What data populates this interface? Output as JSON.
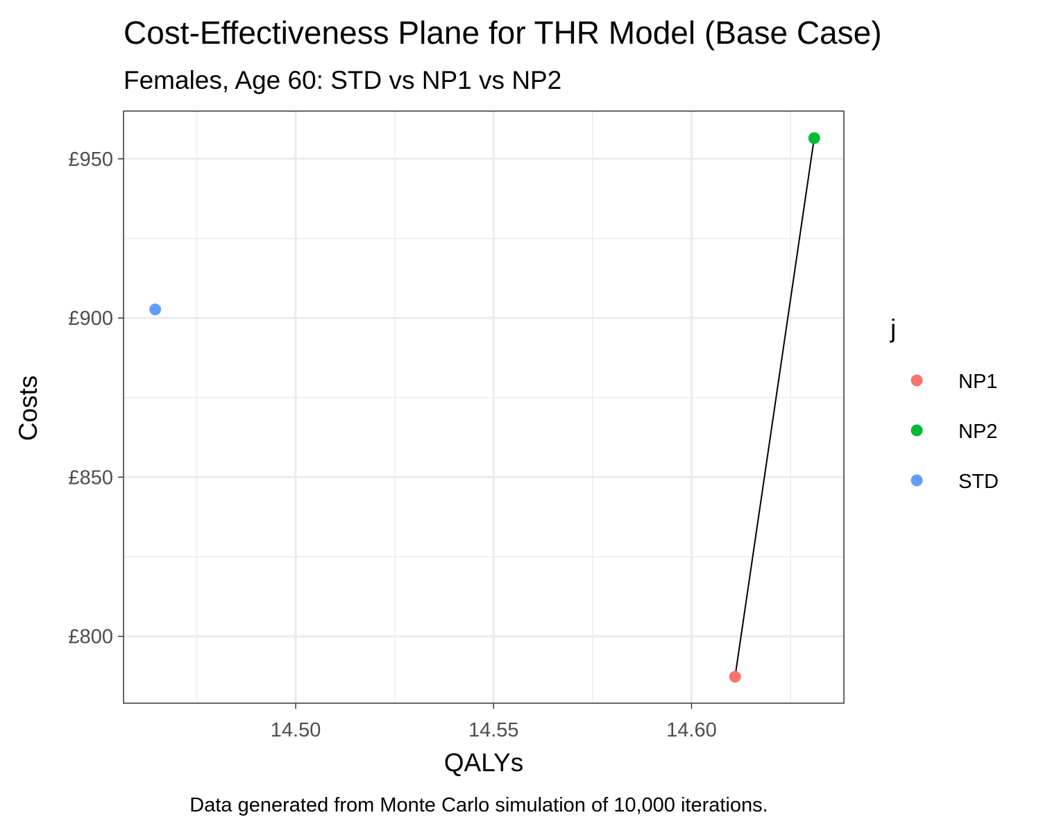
{
  "chart_data": {
    "type": "scatter",
    "title": "Cost-Effectiveness Plane for THR Model (Base Case)",
    "subtitle": "Females, Age 60: STD vs NP1 vs NP2",
    "caption": "Data generated from Monte Carlo simulation of 10,000 iterations.",
    "xlabel": "QALYs",
    "ylabel": "Costs",
    "xlim": [
      14.4565,
      14.6385
    ],
    "ylim": [
      779,
      965
    ],
    "x_ticks": [
      {
        "value": 14.5,
        "label": "14.50"
      },
      {
        "value": 14.55,
        "label": "14.55"
      },
      {
        "value": 14.6,
        "label": "14.60"
      }
    ],
    "x_minor_ticks": [
      14.475,
      14.525,
      14.575,
      14.625
    ],
    "y_ticks": [
      {
        "value": 800,
        "label": "£800"
      },
      {
        "value": 850,
        "label": "£850"
      },
      {
        "value": 900,
        "label": "£900"
      },
      {
        "value": 950,
        "label": "£950"
      }
    ],
    "y_minor_ticks": [
      825,
      875,
      925
    ],
    "grid": true,
    "legend": {
      "title": "j",
      "placement": "right",
      "entries": [
        {
          "name": "NP1",
          "color": "#F8766D"
        },
        {
          "name": "NP2",
          "color": "#00BA38"
        },
        {
          "name": "STD",
          "color": "#619CFF"
        }
      ]
    },
    "points": [
      {
        "name": "STD",
        "x": 14.4645,
        "y": 902.7,
        "color": "#619CFF"
      },
      {
        "name": "NP1",
        "x": 14.611,
        "y": 787.3,
        "color": "#F8766D"
      },
      {
        "name": "NP2",
        "x": 14.631,
        "y": 956.5,
        "color": "#00BA38"
      }
    ],
    "frontier": [
      "NP1",
      "NP2"
    ]
  }
}
